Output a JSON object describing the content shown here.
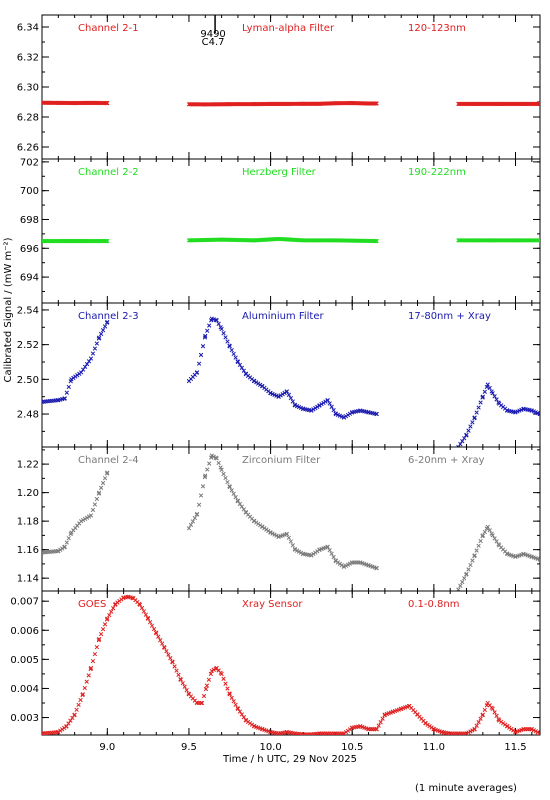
{
  "figure": {
    "ylabel": "Calibrated Signal / (mW m⁻²)",
    "xlabel": "Time / h UTC, 29 Nov 2025",
    "footnote": "(1 minute averages)",
    "event_label": {
      "number": "9490",
      "class": "C4.7",
      "time": 9.66
    }
  },
  "chart_data": [
    {
      "type": "scatter",
      "labels": {
        "left": "Channel 2-1",
        "center": "Lyman-alpha Filter",
        "right": "120-123nm"
      },
      "color": "#e02020",
      "xlim": [
        8.6,
        11.65
      ],
      "ylim": [
        6.252,
        6.348
      ],
      "yticks": [
        6.26,
        6.28,
        6.3,
        6.32,
        6.34
      ],
      "yfmt": 2,
      "series": [
        {
          "x": [
            8.6,
            8.7,
            8.8,
            8.9,
            9.0
          ],
          "y": [
            6.2895,
            6.2894,
            6.2893,
            6.2894,
            6.2893
          ]
        },
        {
          "x": [
            9.5,
            9.6,
            9.7,
            9.8,
            9.9,
            10.0,
            10.1,
            10.2,
            10.3,
            10.4,
            10.5,
            10.6,
            10.65
          ],
          "y": [
            6.2885,
            6.2884,
            6.2885,
            6.2886,
            6.2886,
            6.2887,
            6.2887,
            6.2888,
            6.2888,
            6.2892,
            6.2893,
            6.289,
            6.289
          ]
        },
        {
          "x": [
            11.15,
            11.3,
            11.45,
            11.65
          ],
          "y": [
            6.2887,
            6.2887,
            6.2887,
            6.2887
          ]
        }
      ]
    },
    {
      "type": "scatter",
      "labels": {
        "left": "Channel 2-2",
        "center": "Herzberg Filter",
        "right": "190-222nm"
      },
      "color": "#22dd22",
      "xlim": [
        8.6,
        11.65
      ],
      "ylim": [
        692.2,
        702.2
      ],
      "yticks": [
        694,
        696,
        698,
        700,
        702
      ],
      "yfmt": 0,
      "series": [
        {
          "x": [
            8.6,
            8.8,
            9.0
          ],
          "y": [
            696.5,
            696.5,
            696.5
          ]
        },
        {
          "x": [
            9.5,
            9.7,
            9.9,
            10.05,
            10.2,
            10.4,
            10.65
          ],
          "y": [
            696.55,
            696.6,
            696.55,
            696.65,
            696.55,
            696.55,
            696.5
          ]
        },
        {
          "x": [
            11.15,
            11.35,
            11.65
          ],
          "y": [
            696.55,
            696.55,
            696.55
          ]
        }
      ]
    },
    {
      "type": "scatter",
      "labels": {
        "left": "Channel 2-3",
        "center": "Aluminium Filter",
        "right": "17-80nm + Xray"
      },
      "color": "#1a1ab0",
      "xlim": [
        8.6,
        11.65
      ],
      "ylim": [
        2.461,
        2.544
      ],
      "yticks": [
        2.48,
        2.5,
        2.52,
        2.54
      ],
      "yfmt": 2,
      "series": [
        {
          "x": [
            8.6,
            8.7,
            8.74,
            8.78,
            8.84,
            8.9,
            8.95,
            9.0
          ],
          "y": [
            2.487,
            2.488,
            2.489,
            2.5,
            2.504,
            2.512,
            2.524,
            2.533
          ]
        },
        {
          "x": [
            9.5,
            9.55,
            9.6,
            9.64,
            9.67,
            9.7,
            9.75,
            9.8,
            9.85,
            9.9,
            9.95,
            10.0,
            10.05,
            10.1,
            10.15,
            10.2,
            10.25,
            10.3,
            10.35,
            10.4,
            10.45,
            10.5,
            10.55,
            10.6,
            10.65
          ],
          "y": [
            2.499,
            2.504,
            2.525,
            2.535,
            2.534,
            2.529,
            2.519,
            2.51,
            2.503,
            2.499,
            2.496,
            2.492,
            2.49,
            2.493,
            2.485,
            2.483,
            2.482,
            2.485,
            2.488,
            2.48,
            2.478,
            2.481,
            2.482,
            2.481,
            2.48
          ]
        },
        {
          "x": [
            11.15,
            11.2,
            11.25,
            11.3,
            11.33,
            11.36,
            11.4,
            11.45,
            11.5,
            11.55,
            11.6,
            11.65
          ],
          "y": [
            2.461,
            2.468,
            2.478,
            2.49,
            2.497,
            2.492,
            2.486,
            2.482,
            2.481,
            2.483,
            2.482,
            2.48
          ]
        }
      ]
    },
    {
      "type": "scatter",
      "labels": {
        "left": "Channel 2-4",
        "center": "Zirconium Filter",
        "right": "6-20nm + Xray"
      },
      "color": "#7a7a7a",
      "xlim": [
        8.6,
        11.65
      ],
      "ylim": [
        1.131,
        1.232
      ],
      "yticks": [
        1.14,
        1.16,
        1.18,
        1.2,
        1.22
      ],
      "yfmt": 2,
      "series": [
        {
          "x": [
            8.6,
            8.7,
            8.74,
            8.78,
            8.84,
            8.9,
            8.95,
            9.0
          ],
          "y": [
            1.158,
            1.159,
            1.162,
            1.172,
            1.18,
            1.184,
            1.2,
            1.214
          ]
        },
        {
          "x": [
            9.5,
            9.55,
            9.6,
            9.64,
            9.67,
            9.7,
            9.75,
            9.8,
            9.85,
            9.9,
            9.95,
            10.0,
            10.05,
            10.1,
            10.15,
            10.2,
            10.25,
            10.3,
            10.35,
            10.4,
            10.45,
            10.5,
            10.55,
            10.6,
            10.65
          ],
          "y": [
            1.175,
            1.185,
            1.212,
            1.226,
            1.224,
            1.216,
            1.204,
            1.194,
            1.186,
            1.18,
            1.176,
            1.172,
            1.169,
            1.171,
            1.16,
            1.157,
            1.156,
            1.16,
            1.162,
            1.152,
            1.148,
            1.151,
            1.151,
            1.149,
            1.147
          ]
        },
        {
          "x": [
            11.15,
            11.2,
            11.25,
            11.3,
            11.33,
            11.36,
            11.4,
            11.45,
            11.5,
            11.55,
            11.6,
            11.65
          ],
          "y": [
            1.132,
            1.143,
            1.156,
            1.17,
            1.176,
            1.17,
            1.163,
            1.157,
            1.155,
            1.157,
            1.155,
            1.153
          ]
        }
      ]
    },
    {
      "type": "scatter",
      "labels": {
        "left": "GOES",
        "center": "Xray Sensor",
        "right": "0.1-0.8nm"
      },
      "color": "#e02020",
      "xlim": [
        8.6,
        11.65
      ],
      "ylim": [
        0.0024,
        0.00735
      ],
      "yticks": [
        0.003,
        0.004,
        0.005,
        0.006,
        0.007
      ],
      "yfmt": 3,
      "series": [
        {
          "x": [
            8.6,
            8.7,
            8.75,
            8.8,
            8.85,
            8.9,
            8.95,
            9.0,
            9.05,
            9.1,
            9.13,
            9.16,
            9.2,
            9.25,
            9.3,
            9.35,
            9.4,
            9.45,
            9.5,
            9.55,
            9.58,
            9.61,
            9.64,
            9.67,
            9.7,
            9.75,
            9.8,
            9.85,
            9.9,
            9.95,
            10.0,
            10.05,
            10.1,
            10.15,
            10.2,
            10.25,
            10.3,
            10.35,
            10.4,
            10.45,
            10.5,
            10.55,
            10.6,
            10.65,
            10.7,
            10.75,
            10.8,
            10.85,
            10.9,
            10.95,
            11.0,
            11.05,
            11.1,
            11.15,
            11.2,
            11.25,
            11.3,
            11.33,
            11.36,
            11.4,
            11.45,
            11.5,
            11.55,
            11.6,
            11.65
          ],
          "y": [
            0.00245,
            0.0025,
            0.0027,
            0.0031,
            0.0038,
            0.0047,
            0.0057,
            0.0064,
            0.0069,
            0.00712,
            0.00715,
            0.0071,
            0.00688,
            0.0064,
            0.0059,
            0.0054,
            0.0049,
            0.0043,
            0.0038,
            0.0035,
            0.0035,
            0.0041,
            0.0046,
            0.0047,
            0.0045,
            0.0038,
            0.0033,
            0.0029,
            0.0027,
            0.0026,
            0.0025,
            0.00245,
            0.0025,
            0.00245,
            0.00242,
            0.00242,
            0.00245,
            0.00245,
            0.00245,
            0.00245,
            0.00265,
            0.0027,
            0.0026,
            0.0026,
            0.0031,
            0.0032,
            0.0033,
            0.0034,
            0.0031,
            0.0028,
            0.0026,
            0.0025,
            0.00245,
            0.00245,
            0.00245,
            0.0026,
            0.0031,
            0.0035,
            0.0033,
            0.0029,
            0.0027,
            0.0025,
            0.0026,
            0.0026,
            0.00245
          ]
        }
      ]
    }
  ],
  "xaxis": {
    "ticks": [
      9.0,
      9.5,
      10.0,
      10.5,
      11.0,
      11.5
    ],
    "tick_labels": [
      "9.0",
      "9.5",
      "10.0",
      "10.5",
      "11.0",
      "11.5"
    ]
  }
}
